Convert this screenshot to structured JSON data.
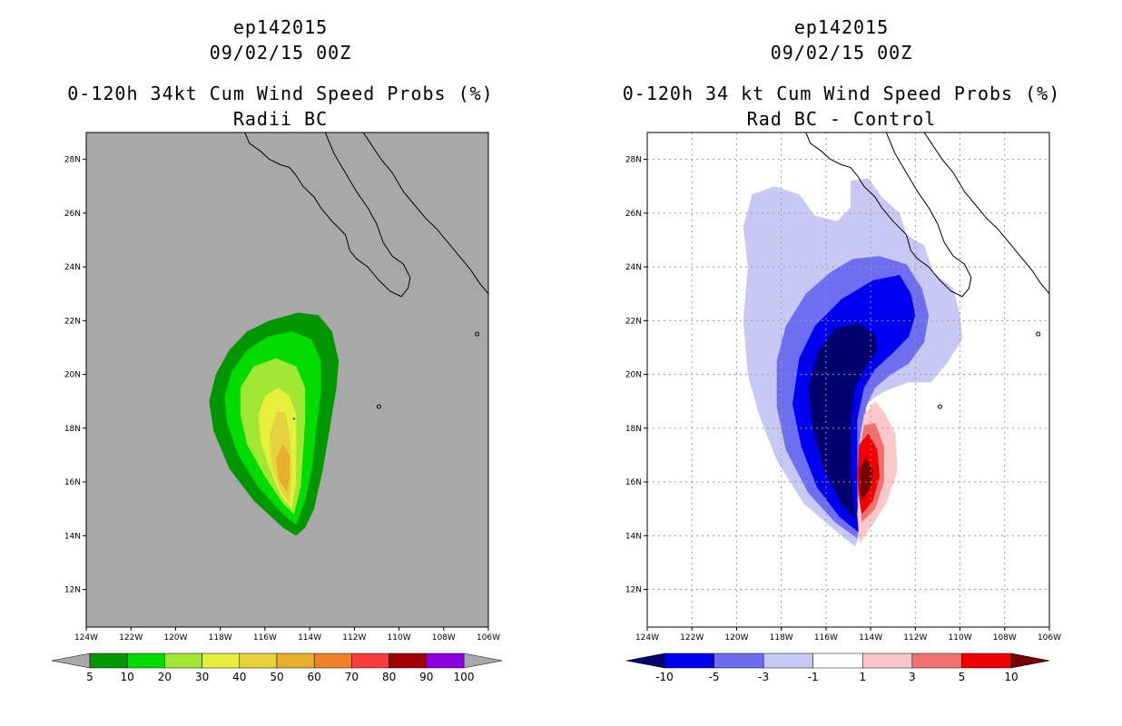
{
  "chart_data": [
    {
      "type": "heatmap",
      "title": "ep142015",
      "subtitle": "09/02/15 00Z",
      "product": "0-120h 34kt Cum Wind Speed Probs (%)",
      "variant": "Radii BC",
      "xlabel": "",
      "ylabel": "",
      "xlim": [
        -124,
        -106
      ],
      "ylim": [
        10.6,
        29
      ],
      "x_ticks": [
        "124W",
        "122W",
        "120W",
        "118W",
        "116W",
        "114W",
        "112W",
        "110W",
        "108W",
        "106W"
      ],
      "y_ticks": [
        "12N",
        "14N",
        "16N",
        "18N",
        "20N",
        "22N",
        "24N",
        "26N",
        "28N"
      ],
      "grid": false,
      "background_color": "#a8a8a8",
      "colorbar": {
        "levels": [
          "5",
          "10",
          "20",
          "30",
          "40",
          "50",
          "60",
          "70",
          "80",
          "90",
          "100"
        ],
        "colors": [
          "#009600",
          "#00dc00",
          "#a0e632",
          "#e6f03c",
          "#e6d23c",
          "#e6af2d",
          "#f08228",
          "#fa3c3c",
          "#a00000",
          "#8c00dc"
        ],
        "extend_low_color": "#a8a8a8",
        "extend_high_color": "#a8a8a8"
      },
      "contours": [
        {
          "min": 5,
          "color": "#009600",
          "polygon": [
            [
              -114.6,
              14.0
            ],
            [
              -115.2,
              14.3
            ],
            [
              -116.5,
              15.3
            ],
            [
              -117.6,
              16.5
            ],
            [
              -118.3,
              17.9
            ],
            [
              -118.5,
              19.0
            ],
            [
              -118.2,
              20.0
            ],
            [
              -117.6,
              20.9
            ],
            [
              -116.8,
              21.6
            ],
            [
              -115.8,
              22.0
            ],
            [
              -114.5,
              22.3
            ],
            [
              -113.6,
              22.2
            ],
            [
              -113.0,
              21.6
            ],
            [
              -112.7,
              20.5
            ],
            [
              -112.8,
              19.5
            ],
            [
              -113.1,
              18.0
            ],
            [
              -113.4,
              16.5
            ],
            [
              -113.8,
              15.0
            ],
            [
              -114.2,
              14.3
            ]
          ]
        },
        {
          "min": 10,
          "color": "#00dc00",
          "polygon": [
            [
              -114.6,
              14.4
            ],
            [
              -115.2,
              14.8
            ],
            [
              -116.3,
              15.8
            ],
            [
              -117.2,
              17.0
            ],
            [
              -117.7,
              18.2
            ],
            [
              -117.8,
              19.2
            ],
            [
              -117.5,
              20.1
            ],
            [
              -116.8,
              20.9
            ],
            [
              -115.9,
              21.4
            ],
            [
              -114.8,
              21.6
            ],
            [
              -113.9,
              21.3
            ],
            [
              -113.5,
              20.5
            ],
            [
              -113.5,
              19.3
            ],
            [
              -113.7,
              18.0
            ],
            [
              -113.9,
              16.5
            ],
            [
              -114.2,
              15.3
            ]
          ]
        },
        {
          "min": 20,
          "color": "#a0e632",
          "polygon": [
            [
              -114.7,
              14.8
            ],
            [
              -115.2,
              15.2
            ],
            [
              -116.0,
              16.2
            ],
            [
              -116.8,
              17.4
            ],
            [
              -117.1,
              18.5
            ],
            [
              -117.1,
              19.5
            ],
            [
              -116.5,
              20.3
            ],
            [
              -115.5,
              20.6
            ],
            [
              -114.6,
              20.3
            ],
            [
              -114.2,
              19.5
            ],
            [
              -114.2,
              18.3
            ],
            [
              -114.3,
              17.0
            ],
            [
              -114.4,
              15.8
            ]
          ]
        },
        {
          "min": 30,
          "color": "#e6f03c",
          "polygon": [
            [
              -114.8,
              15.0
            ],
            [
              -115.3,
              15.5
            ],
            [
              -115.8,
              16.5
            ],
            [
              -116.2,
              17.5
            ],
            [
              -116.3,
              18.5
            ],
            [
              -116.0,
              19.2
            ],
            [
              -115.4,
              19.5
            ],
            [
              -114.9,
              19.2
            ],
            [
              -114.6,
              18.5
            ],
            [
              -114.6,
              17.2
            ],
            [
              -114.6,
              16.0
            ]
          ]
        },
        {
          "min": 40,
          "color": "#e6d23c",
          "polygon": [
            [
              -114.9,
              15.2
            ],
            [
              -115.3,
              15.7
            ],
            [
              -115.7,
              16.6
            ],
            [
              -115.8,
              17.7
            ],
            [
              -115.5,
              18.6
            ],
            [
              -115.1,
              18.6
            ],
            [
              -114.9,
              17.8
            ],
            [
              -114.8,
              16.5
            ]
          ]
        },
        {
          "min": 50,
          "color": "#e6af2d",
          "polygon": [
            [
              -115.0,
              15.6
            ],
            [
              -115.4,
              16.1
            ],
            [
              -115.5,
              16.9
            ],
            [
              -115.2,
              17.4
            ],
            [
              -114.9,
              17.0
            ],
            [
              -114.9,
              16.2
            ]
          ]
        }
      ]
    },
    {
      "type": "heatmap",
      "title": "ep142015",
      "subtitle": "09/02/15 00Z",
      "product": "0-120h 34 kt Cum Wind Speed Probs (%)",
      "variant": "Rad BC - Control",
      "xlabel": "",
      "ylabel": "",
      "xlim": [
        -124,
        -106
      ],
      "ylim": [
        10.6,
        29
      ],
      "x_ticks": [
        "124W",
        "122W",
        "120W",
        "118W",
        "116W",
        "114W",
        "112W",
        "110W",
        "108W",
        "106W"
      ],
      "y_ticks": [
        "12N",
        "14N",
        "16N",
        "18N",
        "20N",
        "22N",
        "24N",
        "26N",
        "28N"
      ],
      "grid": true,
      "background_color": "#ffffff",
      "colorbar": {
        "levels": [
          "-10",
          "-5",
          "-3",
          "-1",
          "1",
          "3",
          "5",
          "10"
        ],
        "colors": [
          "#0000f0",
          "#6e6ef0",
          "#c8c8f5",
          "#ffffff",
          "#fac8c8",
          "#f07070",
          "#f00000"
        ],
        "extend_low_color": "#00006e",
        "extend_high_color": "#780000"
      },
      "contours": [
        {
          "min": -1,
          "color": "#c8c8f5",
          "polygon": [
            [
              -114.7,
              13.6
            ],
            [
              -115.6,
              14.2
            ],
            [
              -117.0,
              15.2
            ],
            [
              -118.2,
              16.8
            ],
            [
              -119.0,
              18.5
            ],
            [
              -119.5,
              20.0
            ],
            [
              -119.7,
              22.0
            ],
            [
              -119.5,
              24.0
            ],
            [
              -119.7,
              25.5
            ],
            [
              -119.3,
              26.7
            ],
            [
              -118.3,
              27.0
            ],
            [
              -117.2,
              26.7
            ],
            [
              -116.5,
              25.9
            ],
            [
              -115.5,
              25.7
            ],
            [
              -114.9,
              26.2
            ],
            [
              -114.9,
              27.2
            ],
            [
              -114.1,
              27.3
            ],
            [
              -113.5,
              26.6
            ],
            [
              -112.7,
              26.0
            ],
            [
              -112.4,
              25.2
            ],
            [
              -111.6,
              24.8
            ],
            [
              -111.2,
              23.8
            ],
            [
              -110.3,
              23.2
            ],
            [
              -110.0,
              22.2
            ],
            [
              -109.9,
              21.3
            ],
            [
              -110.6,
              20.4
            ],
            [
              -111.3,
              19.7
            ],
            [
              -112.3,
              19.7
            ],
            [
              -113.3,
              19.4
            ],
            [
              -114.1,
              19.0
            ],
            [
              -114.3,
              18.5
            ],
            [
              -114.3,
              17.5
            ],
            [
              -114.2,
              16.2
            ],
            [
              -114.3,
              15.0
            ],
            [
              -114.4,
              14.2
            ]
          ]
        },
        {
          "min": -3,
          "color": "#6e6ef0",
          "polygon": [
            [
              -114.6,
              13.9
            ],
            [
              -115.6,
              14.5
            ],
            [
              -116.8,
              15.6
            ],
            [
              -117.8,
              17.2
            ],
            [
              -118.2,
              18.8
            ],
            [
              -118.2,
              20.5
            ],
            [
              -117.8,
              21.8
            ],
            [
              -116.9,
              23.0
            ],
            [
              -115.8,
              23.8
            ],
            [
              -114.8,
              24.3
            ],
            [
              -113.6,
              24.4
            ],
            [
              -112.4,
              24.1
            ],
            [
              -111.7,
              23.2
            ],
            [
              -111.4,
              22.2
            ],
            [
              -111.6,
              21.2
            ],
            [
              -112.3,
              20.4
            ],
            [
              -113.1,
              20.0
            ],
            [
              -113.8,
              19.5
            ],
            [
              -114.2,
              18.8
            ],
            [
              -114.4,
              17.5
            ],
            [
              -114.4,
              16.0
            ],
            [
              -114.5,
              14.8
            ]
          ]
        },
        {
          "min": -5,
          "color": "#0000f0",
          "polygon": [
            [
              -114.5,
              14.1
            ],
            [
              -115.4,
              14.7
            ],
            [
              -116.4,
              15.8
            ],
            [
              -117.1,
              17.3
            ],
            [
              -117.5,
              18.9
            ],
            [
              -117.2,
              20.6
            ],
            [
              -116.5,
              21.8
            ],
            [
              -115.3,
              22.8
            ],
            [
              -113.9,
              23.5
            ],
            [
              -112.7,
              23.7
            ],
            [
              -112.2,
              23.0
            ],
            [
              -112.0,
              22.2
            ],
            [
              -112.3,
              21.4
            ],
            [
              -113.0,
              20.8
            ],
            [
              -113.8,
              20.2
            ],
            [
              -114.3,
              19.5
            ],
            [
              -114.6,
              18.3
            ],
            [
              -114.6,
              16.8
            ],
            [
              -114.6,
              15.3
            ]
          ]
        },
        {
          "min": -10,
          "color": "#00006e",
          "polygon": [
            [
              -114.7,
              14.6
            ],
            [
              -115.4,
              15.3
            ],
            [
              -116.1,
              16.5
            ],
            [
              -116.6,
              18.0
            ],
            [
              -116.8,
              19.5
            ],
            [
              -116.4,
              20.8
            ],
            [
              -115.6,
              21.7
            ],
            [
              -114.6,
              21.9
            ],
            [
              -113.8,
              21.5
            ],
            [
              -113.7,
              20.9
            ],
            [
              -114.2,
              20.3
            ],
            [
              -114.7,
              19.5
            ],
            [
              -114.9,
              18.3
            ],
            [
              -114.9,
              16.8
            ],
            [
              -114.8,
              15.6
            ]
          ]
        },
        {
          "min": 1,
          "color": "#fac8c8",
          "polygon": [
            [
              -114.5,
              13.7
            ],
            [
              -114.0,
              14.3
            ],
            [
              -113.3,
              15.2
            ],
            [
              -112.8,
              16.4
            ],
            [
              -112.9,
              17.8
            ],
            [
              -113.4,
              18.6
            ],
            [
              -113.8,
              19.0
            ],
            [
              -114.3,
              18.5
            ],
            [
              -114.5,
              17.5
            ],
            [
              -114.5,
              16.0
            ],
            [
              -114.6,
              14.8
            ]
          ]
        },
        {
          "min": 3,
          "color": "#f07070",
          "polygon": [
            [
              -114.4,
              14.5
            ],
            [
              -113.8,
              15.0
            ],
            [
              -113.4,
              16.0
            ],
            [
              -113.4,
              17.3
            ],
            [
              -113.8,
              18.2
            ],
            [
              -114.3,
              18.1
            ],
            [
              -114.5,
              17.2
            ],
            [
              -114.5,
              15.8
            ]
          ]
        },
        {
          "min": 5,
          "color": "#f00000",
          "polygon": [
            [
              -114.4,
              14.8
            ],
            [
              -113.9,
              15.3
            ],
            [
              -113.6,
              16.2
            ],
            [
              -113.7,
              17.2
            ],
            [
              -114.1,
              17.8
            ],
            [
              -114.5,
              17.4
            ],
            [
              -114.6,
              16.3
            ],
            [
              -114.5,
              15.3
            ]
          ]
        },
        {
          "min": 10,
          "color": "#780000",
          "polygon": [
            [
              -114.4,
              15.3
            ],
            [
              -114.0,
              15.8
            ],
            [
              -113.9,
              16.4
            ],
            [
              -114.2,
              16.9
            ],
            [
              -114.5,
              16.5
            ],
            [
              -114.5,
              15.8
            ]
          ]
        }
      ]
    }
  ]
}
